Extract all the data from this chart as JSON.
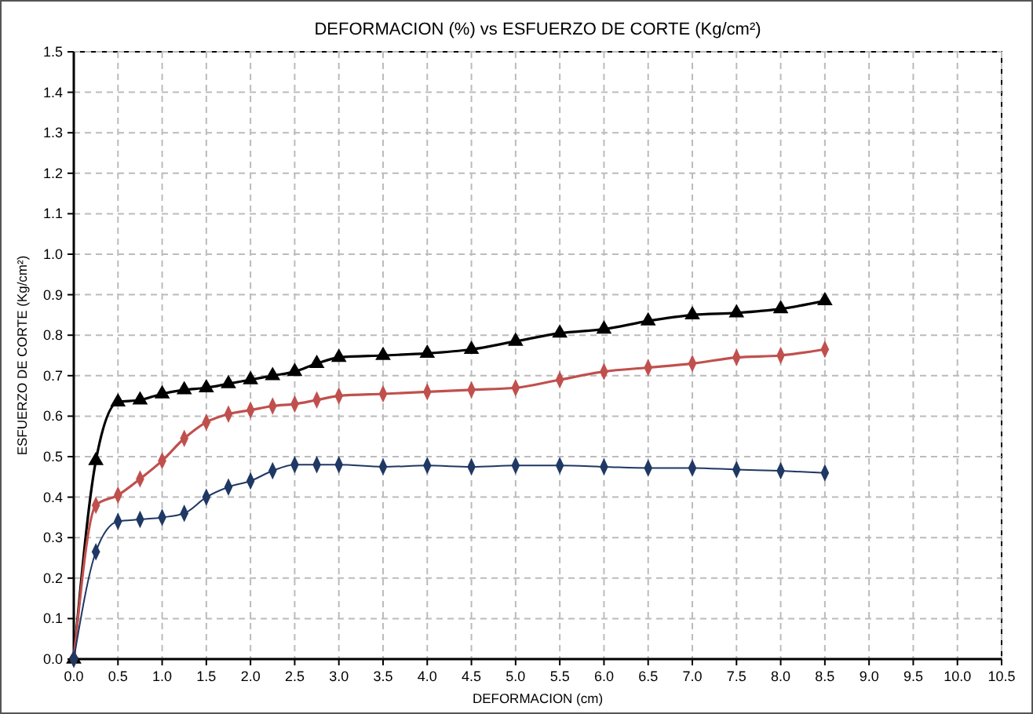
{
  "chart_data": {
    "type": "line",
    "title": "DEFORMACION (%) vs ESFUERZO DE CORTE (Kg/cm²)",
    "xlabel": "DEFORMACION (cm)",
    "ylabel": "ESFUERZO DE CORTE (Kg/cm²)",
    "x": [
      0,
      0.25,
      0.5,
      0.75,
      1,
      1.25,
      1.5,
      1.75,
      2,
      2.25,
      2.5,
      2.75,
      3,
      3.5,
      4,
      4.5,
      5,
      5.5,
      6,
      6.5,
      7,
      7.5,
      8,
      8.5
    ],
    "series": [
      {
        "color": "#000000",
        "marker": "triangle",
        "values": [
          0,
          0.49,
          0.635,
          0.64,
          0.655,
          0.665,
          0.67,
          0.68,
          0.69,
          0.7,
          0.71,
          0.73,
          0.745,
          0.75,
          0.755,
          0.765,
          0.785,
          0.805,
          0.815,
          0.835,
          0.85,
          0.855,
          0.865,
          0.885
        ]
      },
      {
        "color": "#c0504d",
        "marker": "diamond",
        "values": [
          0,
          0.38,
          0.405,
          0.445,
          0.49,
          0.545,
          0.585,
          0.605,
          0.615,
          0.625,
          0.63,
          0.64,
          0.65,
          0.655,
          0.66,
          0.665,
          0.67,
          0.69,
          0.71,
          0.72,
          0.73,
          0.745,
          0.75,
          0.765
        ]
      },
      {
        "color": "#1f3864",
        "marker": "diamond",
        "values": [
          0,
          0.265,
          0.34,
          0.345,
          0.35,
          0.36,
          0.4,
          0.425,
          0.44,
          0.465,
          0.48,
          0.48,
          0.48,
          0.475,
          0.478,
          0.475,
          0.478,
          0.478,
          0.475,
          0.472,
          0.472,
          0.468,
          0.465,
          0.46
        ]
      }
    ],
    "xlim": [
      0,
      10.5
    ],
    "xticks": [
      {
        "value": 0,
        "label": "0.0"
      },
      0.5,
      {
        "value": 1,
        "label": "1.0"
      },
      1.5,
      {
        "value": 2,
        "label": "2.0"
      },
      2.5,
      {
        "value": 3,
        "label": "3.0"
      },
      3.5,
      {
        "value": 4,
        "label": "4.0"
      },
      4.5,
      {
        "value": 5,
        "label": "5.0"
      },
      5.5,
      {
        "value": 6,
        "label": "6.0"
      },
      6.5,
      {
        "value": 7,
        "label": "7.0"
      },
      7.5,
      {
        "value": 8,
        "label": "8.0"
      },
      8.5,
      {
        "value": 9,
        "label": "9.0"
      },
      9.5,
      {
        "value": 10,
        "label": "10.0"
      },
      10.5
    ],
    "ylim": [
      0,
      1.5
    ],
    "yticks": [
      {
        "value": 0,
        "label": "0.0"
      },
      0.1,
      0.2,
      0.3,
      0.4,
      0.5,
      0.6,
      0.7,
      0.8,
      0.9,
      {
        "value": 1,
        "label": "1.0"
      },
      1.1,
      1.2,
      1.3,
      1.4,
      1.5
    ],
    "grid": true,
    "line_style": "solid"
  }
}
